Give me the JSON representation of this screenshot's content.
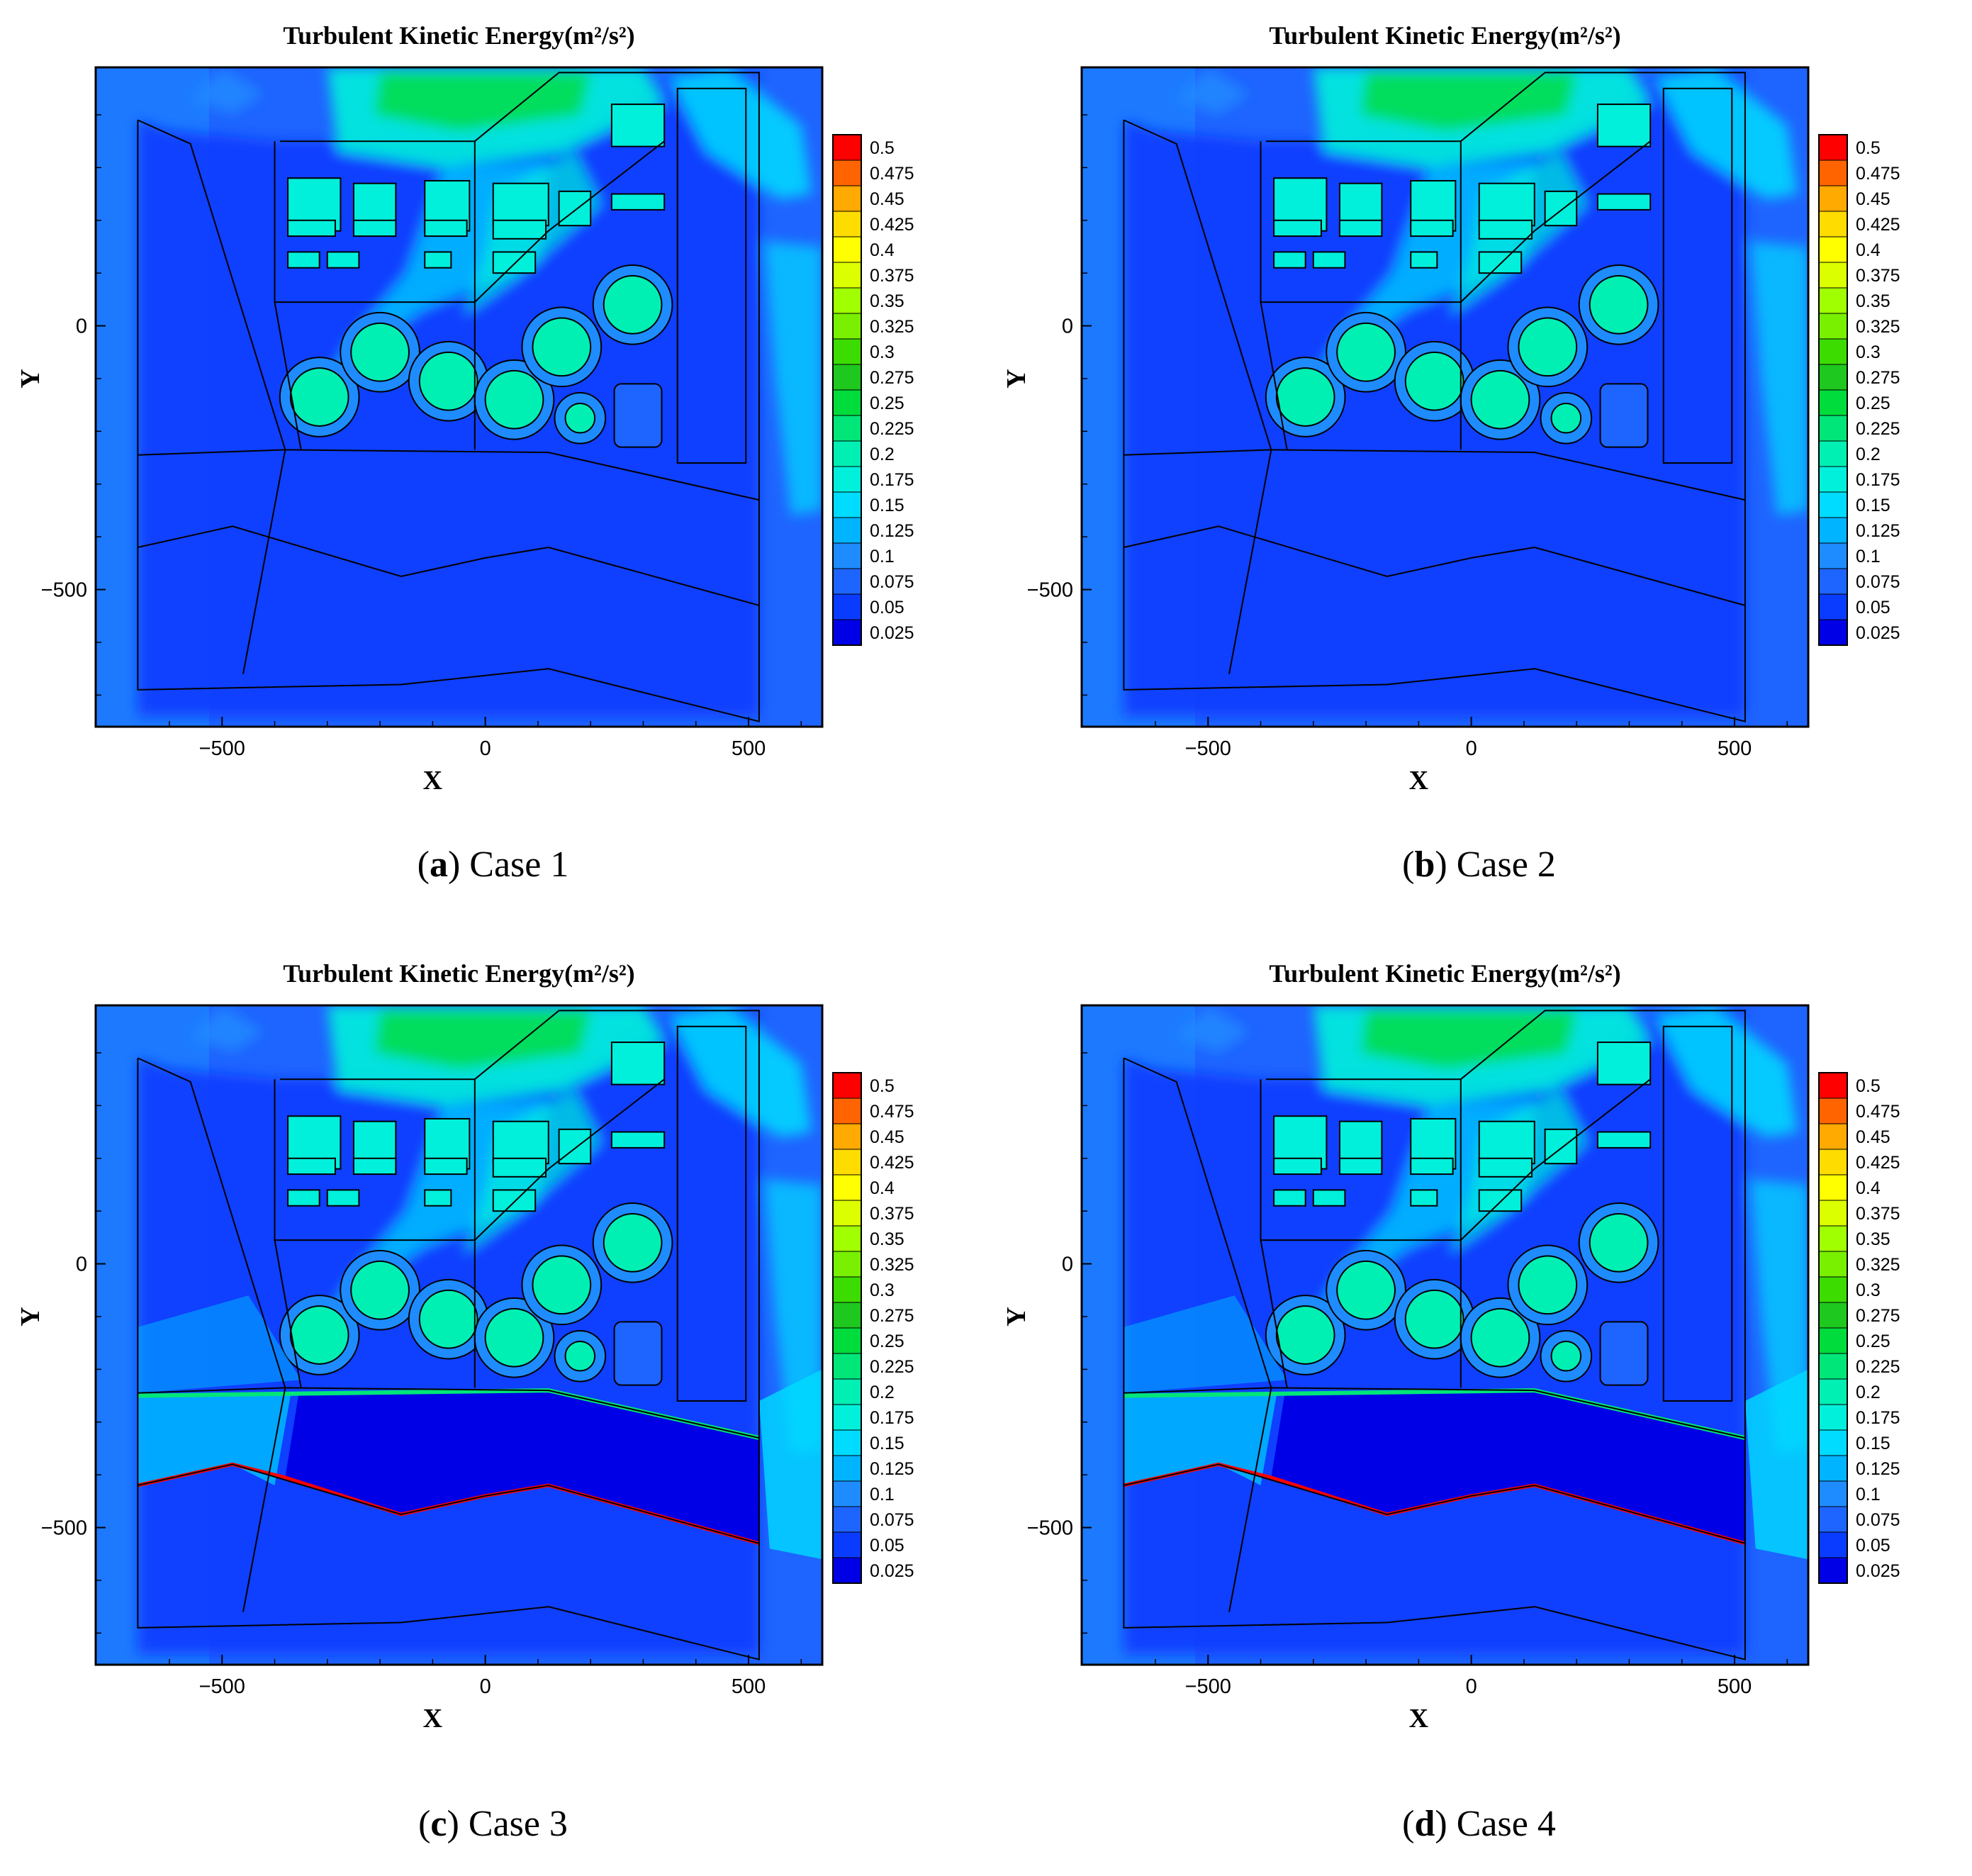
{
  "chart_data": [
    {
      "type": "heatmap",
      "title": "Turbulent Kinetic Energy(m²/s²)",
      "xlabel": "X",
      "ylabel": "Y",
      "xlim": [
        -740,
        640
      ],
      "ylim": [
        -760,
        490
      ],
      "x_ticks": [
        "−500",
        "0",
        "500"
      ],
      "y_ticks": [
        "0",
        "−500"
      ],
      "colorbar_levels": [
        "0.5",
        "0.475",
        "0.45",
        "0.425",
        "0.4",
        "0.375",
        "0.35",
        "0.325",
        "0.3",
        "0.275",
        "0.25",
        "0.225",
        "0.2",
        "0.175",
        "0.15",
        "0.125",
        "0.1",
        "0.075",
        "0.05",
        "0.025"
      ],
      "caption_letter": "a",
      "caption_text": "Case 1",
      "windbreak": false
    },
    {
      "type": "heatmap",
      "title": "Turbulent Kinetic Energy(m²/s²)",
      "xlabel": "X",
      "ylabel": "Y",
      "xlim": [
        -740,
        640
      ],
      "ylim": [
        -760,
        490
      ],
      "x_ticks": [
        "−500",
        "0",
        "500"
      ],
      "y_ticks": [
        "0",
        "−500"
      ],
      "colorbar_levels": [
        "0.5",
        "0.475",
        "0.45",
        "0.425",
        "0.4",
        "0.375",
        "0.35",
        "0.325",
        "0.3",
        "0.275",
        "0.25",
        "0.225",
        "0.2",
        "0.175",
        "0.15",
        "0.125",
        "0.1",
        "0.075",
        "0.05",
        "0.025"
      ],
      "caption_letter": "b",
      "caption_text": "Case 2",
      "windbreak": false
    },
    {
      "type": "heatmap",
      "title": "Turbulent Kinetic Energy(m²/s²)",
      "xlabel": "X",
      "ylabel": "Y",
      "xlim": [
        -740,
        640
      ],
      "ylim": [
        -760,
        490
      ],
      "x_ticks": [
        "−500",
        "0",
        "500"
      ],
      "y_ticks": [
        "0",
        "−500"
      ],
      "colorbar_levels": [
        "0.5",
        "0.475",
        "0.45",
        "0.425",
        "0.4",
        "0.375",
        "0.35",
        "0.325",
        "0.3",
        "0.275",
        "0.25",
        "0.225",
        "0.2",
        "0.175",
        "0.15",
        "0.125",
        "0.1",
        "0.075",
        "0.05",
        "0.025"
      ],
      "caption_letter": "c",
      "caption_text": "Case 3",
      "windbreak": true
    },
    {
      "type": "heatmap",
      "title": "Turbulent Kinetic Energy(m²/s²)",
      "xlabel": "X",
      "ylabel": "Y",
      "xlim": [
        -740,
        640
      ],
      "ylim": [
        -760,
        490
      ],
      "x_ticks": [
        "−500",
        "0",
        "500"
      ],
      "y_ticks": [
        "0",
        "−500"
      ],
      "colorbar_levels": [
        "0.5",
        "0.475",
        "0.45",
        "0.425",
        "0.4",
        "0.375",
        "0.35",
        "0.325",
        "0.3",
        "0.275",
        "0.25",
        "0.225",
        "0.2",
        "0.175",
        "0.15",
        "0.125",
        "0.1",
        "0.075",
        "0.05",
        "0.025"
      ],
      "caption_letter": "d",
      "caption_text": "Case 4",
      "windbreak": true
    }
  ],
  "colors": {
    "tke_scale": [
      "#0000e6",
      "#0a3cff",
      "#1e64ff",
      "#1e8cff",
      "#00b4ff",
      "#00dcff",
      "#00f0dc",
      "#00f0b4",
      "#00e678",
      "#00dc3c",
      "#1ec81e",
      "#3cdc00",
      "#78f000",
      "#a0ff00",
      "#dcff00",
      "#ffff00",
      "#ffdc00",
      "#ffaa00",
      "#ff6400",
      "#ff0000"
    ]
  }
}
